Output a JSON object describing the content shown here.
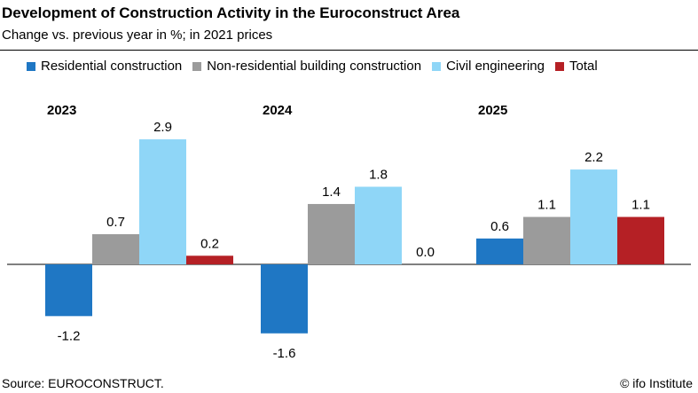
{
  "header": {
    "title": "Development of Construction Activity in the Euroconstruct Area",
    "subtitle": "Change vs. previous year in %; in 2021 prices"
  },
  "footer": {
    "source": "Source: EUROCONSTRUCT.",
    "credit": "© ifo Institute"
  },
  "chart_data": {
    "type": "bar",
    "categories": [
      "2023",
      "2024",
      "2025"
    ],
    "series": [
      {
        "name": "Residential construction",
        "color": "#1f77c4",
        "values": [
          -1.2,
          -1.6,
          0.6
        ]
      },
      {
        "name": "Non-residential building construction",
        "color": "#9b9b9b",
        "values": [
          0.7,
          1.4,
          1.1
        ]
      },
      {
        "name": "Civil engineering",
        "color": "#8fd6f7",
        "values": [
          2.9,
          1.8,
          2.2
        ]
      },
      {
        "name": "Total",
        "color": "#b52025",
        "values": [
          0.2,
          0.0,
          1.1
        ]
      }
    ],
    "value_labels": [
      [
        "-1.2",
        "0.7",
        "2.9",
        "0.2"
      ],
      [
        "-1.6",
        "1.4",
        "1.8",
        "0.0"
      ],
      [
        "0.6",
        "1.1",
        "2.2",
        "1.1"
      ]
    ],
    "legend": "top",
    "grid": false,
    "xlabel": "",
    "ylabel": ""
  }
}
